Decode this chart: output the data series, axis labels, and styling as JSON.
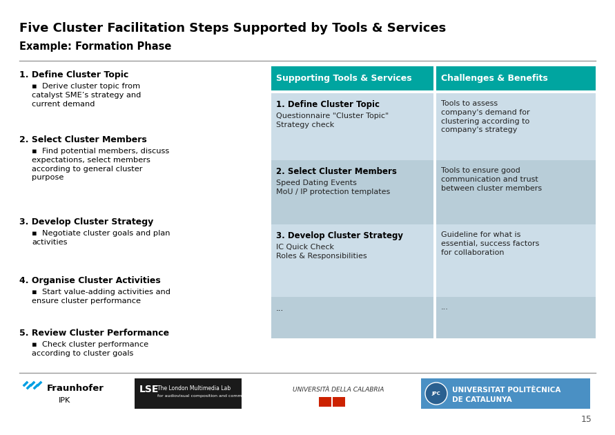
{
  "title": "Five Cluster Facilitation Steps Supported by Tools & Services",
  "subtitle": "Example: Formation Phase",
  "title_color": "#000000",
  "bg_color": "#ffffff",
  "header_color": "#00a5a0",
  "header_text_color": "#ffffff",
  "row_color_1": "#ccdde8",
  "row_color_2": "#b8cdd8",
  "left_steps": [
    {
      "heading": "1. Define Cluster Topic",
      "bullet": "Derive cluster topic from\ncatalyst SME’s strategy and\ncurrent demand"
    },
    {
      "heading": "2. Select Cluster Members",
      "bullet": "Find potential members, discuss\nexpectations, select members\naccording to general cluster\npurpose"
    },
    {
      "heading": "3. Develop Cluster Strategy",
      "bullet": "Negotiate cluster goals and plan\nactivities"
    },
    {
      "heading": "4. Organise Cluster Activities",
      "bullet": "Start value-adding activities and\nensure cluster performance"
    },
    {
      "heading": "5. Review Cluster Performance",
      "bullet": "Check cluster performance\naccording to cluster goals"
    }
  ],
  "col1_header": "Supporting Tools & Services",
  "col2_header": "Challenges & Benefits",
  "table_rows": [
    {
      "col1_bold": "1. Define Cluster Topic",
      "col1_normal": "Questionnaire \"Cluster Topic\"\nStrategy check",
      "col2": "Tools to assess\ncompany's demand for\nclustering according to\ncompany's strategy"
    },
    {
      "col1_bold": "2. Select Cluster Members",
      "col1_normal": "Speed Dating Events\nMoU / IP protection templates",
      "col2": "Tools to ensure good\ncommunication and trust\nbetween cluster members"
    },
    {
      "col1_bold": "3. Develop Cluster Strategy",
      "col1_normal": "IC Quick Check\nRoles & Responsibilities",
      "col2": "Guideline for what is\nessential, success factors\nfor collaboration"
    },
    {
      "col1_bold": "",
      "col1_normal": "...",
      "col2": "..."
    }
  ],
  "page_number": "15"
}
